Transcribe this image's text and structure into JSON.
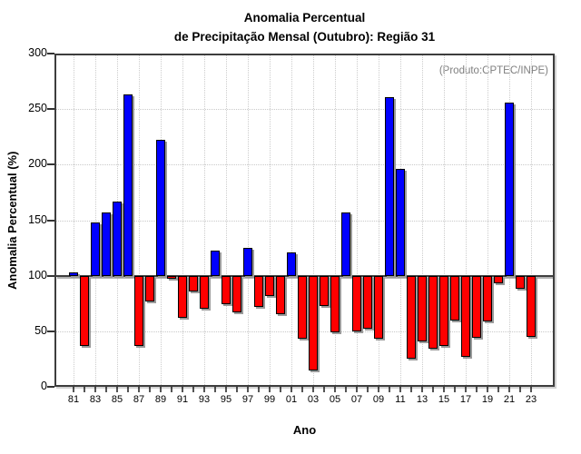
{
  "title": {
    "line1": "Anomalia Percentual",
    "line2": "de Precipitação Mensal (Outubro): Região 31"
  },
  "watermark": "(Produto:CPTEC/INPE)",
  "chart_data": {
    "type": "bar",
    "title": "Anomalia Percentual de Precipitação Mensal (Outubro): Região 31",
    "annotation": "(Produto:CPTEC/INPE)",
    "xlabel": "Ano",
    "ylabel": "Anomalia Percentual (%)",
    "ylim": [
      0,
      300
    ],
    "yticks": [
      0,
      50,
      100,
      150,
      200,
      250,
      300
    ],
    "baseline": 100,
    "grid": true,
    "legend_position": "top-right",
    "start_year": 1981,
    "x_tick_labels": [
      "81",
      "83",
      "85",
      "87",
      "89",
      "91",
      "93",
      "95",
      "97",
      "99",
      "01",
      "03",
      "05",
      "07",
      "09",
      "11",
      "13",
      "15",
      "17",
      "19",
      "21",
      "23"
    ],
    "values": [
      103,
      37,
      148,
      157,
      167,
      263,
      37,
      77,
      222,
      97,
      62,
      86,
      70,
      123,
      74,
      67,
      125,
      72,
      82,
      65,
      121,
      43,
      15,
      73,
      49,
      157,
      50,
      52,
      43,
      261,
      196,
      25,
      41,
      34,
      37,
      60,
      27,
      44,
      59,
      93,
      256,
      88,
      45
    ],
    "colors": {
      "above_baseline": "#0000ff",
      "below_baseline": "#ff0000",
      "frame": "#3d3d3d",
      "baseline_line": "#3f3f3f",
      "gridline": "#c9c9c9",
      "annotation_text": "#7f7f7f"
    }
  }
}
